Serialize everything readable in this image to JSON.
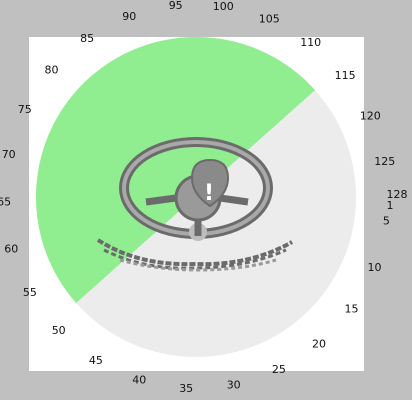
{
  "palette": {
    "background": "#c0c0c0",
    "panel": "#ffffff",
    "dial_light": "#ececec",
    "dial_selected": "#90ee90",
    "icon_outline": "#6b6b6b",
    "icon_fill": "#a9a9a9",
    "label": "#111111"
  },
  "dial": {
    "icon": "steering-wheel-warning-icon",
    "value_min": 1,
    "value_max": 128,
    "selection_start": 51,
    "selection_end": 114
  },
  "labels": [
    "1",
    "5",
    "10",
    "15",
    "20",
    "25",
    "30",
    "35",
    "40",
    "45",
    "50",
    "55",
    "60",
    "65",
    "70",
    "75",
    "80",
    "85",
    "90",
    "95",
    "100",
    "105",
    "110",
    "115",
    "120",
    "125",
    "128"
  ]
}
